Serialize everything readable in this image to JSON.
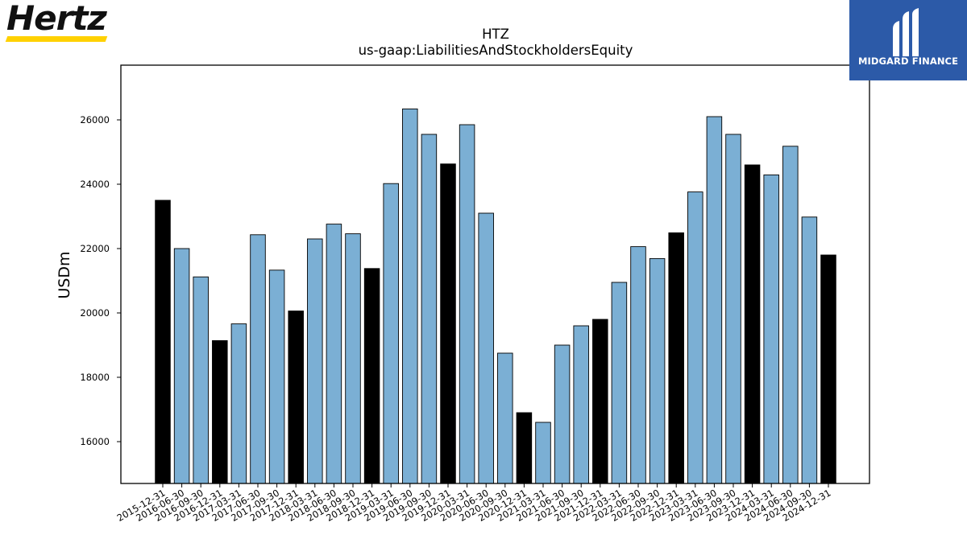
{
  "logos": {
    "left_brand": "Hertz",
    "right_brand": "MIDGARD FINANCE"
  },
  "colors": {
    "annual_bar": "#000000",
    "quarter_bar": "#7bafd4",
    "logo_yellow": "#ffd100",
    "logo_blue": "#2c5aa8"
  },
  "chart_data": {
    "type": "bar",
    "title": "HTZ",
    "subtitle": "us-gaap:LiabilitiesAndStockholdersEquity",
    "xlabel": "",
    "ylabel": "USDm",
    "ylim": [
      14700,
      27700
    ],
    "yticks": [
      16000,
      18000,
      20000,
      22000,
      24000,
      26000
    ],
    "grid": false,
    "categories": [
      "2015-12-31",
      "2016-06-30",
      "2016-09-30",
      "2016-12-31",
      "2017-03-31",
      "2017-06-30",
      "2017-09-30",
      "2017-12-31",
      "2018-03-31",
      "2018-06-30",
      "2018-09-30",
      "2018-12-31",
      "2019-03-31",
      "2019-06-30",
      "2019-09-30",
      "2019-12-31",
      "2020-03-31",
      "2020-06-30",
      "2020-09-30",
      "2020-12-31",
      "2021-03-31",
      "2021-06-30",
      "2021-09-30",
      "2021-12-31",
      "2022-03-31",
      "2022-06-30",
      "2022-09-30",
      "2022-12-31",
      "2023-03-31",
      "2023-06-30",
      "2023-09-30",
      "2023-12-31",
      "2024-03-31",
      "2024-06-30",
      "2024-09-30",
      "2024-12-31"
    ],
    "values": [
      23500,
      22000,
      21120,
      19140,
      19660,
      22430,
      21330,
      20060,
      22300,
      22760,
      22460,
      21380,
      24020,
      26340,
      25550,
      24630,
      25850,
      23100,
      18750,
      16900,
      16600,
      19000,
      19600,
      19800,
      20950,
      22060,
      21690,
      22490,
      23760,
      26100,
      25550,
      24600,
      24290,
      25180,
      22980,
      21800
    ],
    "annual": [
      true,
      false,
      false,
      true,
      false,
      false,
      false,
      true,
      false,
      false,
      false,
      true,
      false,
      false,
      false,
      true,
      false,
      false,
      false,
      true,
      false,
      false,
      false,
      true,
      false,
      false,
      false,
      true,
      false,
      false,
      false,
      true,
      false,
      false,
      false,
      true
    ]
  }
}
